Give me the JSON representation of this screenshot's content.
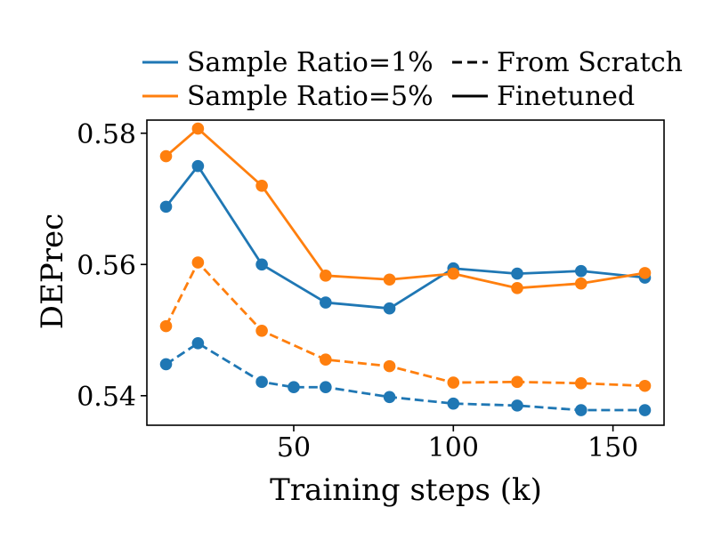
{
  "chart_data": {
    "type": "line",
    "title": "",
    "xlabel": "Training steps (k)",
    "ylabel": "DEPrec",
    "xlim": [
      4,
      166
    ],
    "ylim": [
      0.5355,
      0.582
    ],
    "xticks": [
      50,
      100,
      150
    ],
    "xtick_labels": [
      "50",
      "100",
      "150"
    ],
    "yticks": [
      0.54,
      0.56,
      0.58
    ],
    "ytick_labels": [
      "0.54",
      "0.56",
      "0.58"
    ],
    "grid": false,
    "legend_position": "top, above plot",
    "series": [
      {
        "name": "Sample Ratio=1%",
        "color": "#1f77b4",
        "linestyle": "solid",
        "x": [
          10,
          20,
          40,
          60,
          80,
          100,
          120,
          140,
          160
        ],
        "y": [
          0.5688,
          0.575,
          0.56,
          0.5542,
          0.5533,
          0.5594,
          0.5586,
          0.559,
          0.558
        ]
      },
      {
        "name": "Sample Ratio=5%",
        "color": "#ff7f0e",
        "linestyle": "solid",
        "x": [
          10,
          20,
          40,
          60,
          80,
          100,
          120,
          140,
          160
        ],
        "y": [
          0.5765,
          0.5807,
          0.572,
          0.5583,
          0.5577,
          0.5586,
          0.5564,
          0.5571,
          0.5587
        ]
      },
      {
        "name": "Sample Ratio=1%",
        "color": "#1f77b4",
        "linestyle": "dashed",
        "x": [
          10,
          20,
          40,
          50,
          60,
          80,
          100,
          120,
          140,
          160
        ],
        "y": [
          0.5448,
          0.548,
          0.5421,
          0.5413,
          0.5413,
          0.5398,
          0.5388,
          0.5385,
          0.5378,
          0.5378
        ]
      },
      {
        "name": "Sample Ratio=5%",
        "color": "#ff7f0e",
        "linestyle": "dashed",
        "x": [
          10,
          20,
          40,
          60,
          80,
          100,
          120,
          140,
          160
        ],
        "y": [
          0.5506,
          0.5603,
          0.5499,
          0.5455,
          0.5445,
          0.542,
          0.5421,
          0.5419,
          0.5415
        ]
      }
    ],
    "legend": [
      {
        "label": "Sample Ratio=1%",
        "color": "#1f77b4",
        "linestyle": "solid"
      },
      {
        "label": "From Scratch",
        "color": "#000000",
        "linestyle": "dashed"
      },
      {
        "label": "Sample Ratio=5%",
        "color": "#ff7f0e",
        "linestyle": "solid"
      },
      {
        "label": "Finetuned",
        "color": "#000000",
        "linestyle": "solid"
      }
    ]
  }
}
